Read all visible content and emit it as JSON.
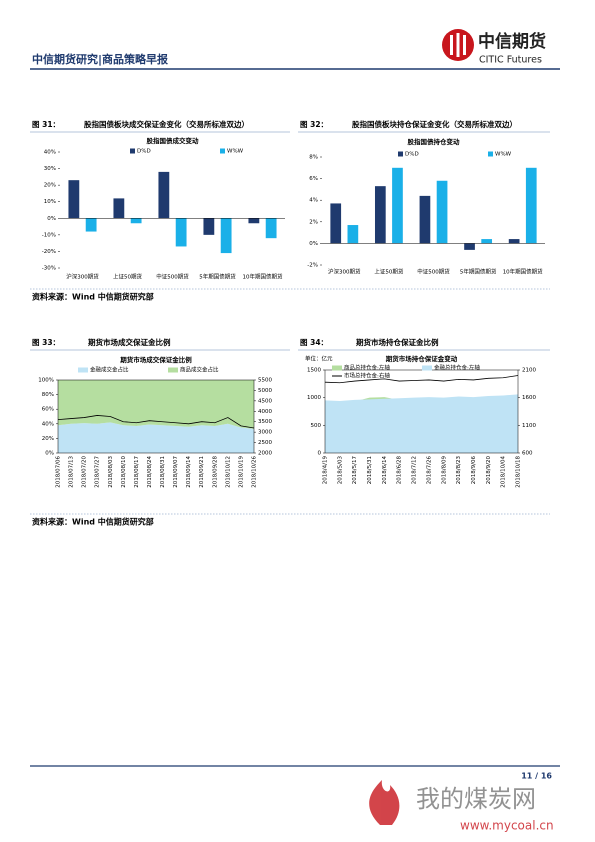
{
  "header": {
    "title": "中信期货研究|商品策略早报",
    "logo_cn": "中信期货",
    "logo_en": "CITIC Futures"
  },
  "figures": [
    {
      "number": "图 31：",
      "caption": "股指国债板块成交保证金变化（交易所标准双边）",
      "chart_data": {
        "type": "bar",
        "title": "股指国债成交变动",
        "categories": [
          "沪深300期货",
          "上证50期货",
          "中证500期货",
          "5年期国债期货",
          "10年期国债期货"
        ],
        "series": [
          {
            "name": "D%D",
            "color": "#1f3a6e",
            "values": [
              23,
              12,
              28,
              -10,
              -3
            ]
          },
          {
            "name": "W%W",
            "color": "#1ab0e8",
            "values": [
              -8,
              -3,
              -17,
              -21,
              -12
            ]
          }
        ],
        "ylim": [
          -30,
          40
        ],
        "yticks": [
          {
            "value": -30,
            "label": "-30%"
          },
          {
            "value": -20,
            "label": "-20%"
          },
          {
            "value": -10,
            "label": "-10%"
          },
          {
            "value": 0,
            "label": "0%"
          },
          {
            "value": 10,
            "label": "10%"
          },
          {
            "value": 20,
            "label": "20%"
          },
          {
            "value": 30,
            "label": "30%"
          },
          {
            "value": 40,
            "label": "40%"
          }
        ]
      }
    },
    {
      "number": "图 32：",
      "caption": "股指国债板块持仓保证金变化（交易所标准双边）",
      "chart_data": {
        "type": "bar",
        "title": "股指国债持仓变动",
        "categories": [
          "沪深300期货",
          "上证50期货",
          "中证500期货",
          "5年期国债期货",
          "10年期国债期货"
        ],
        "series": [
          {
            "name": "D%D",
            "color": "#1f3a6e",
            "values": [
              3.7,
              5.3,
              4.4,
              -0.6,
              0.4
            ]
          },
          {
            "name": "W%W",
            "color": "#1ab0e8",
            "values": [
              1.7,
              7.0,
              5.8,
              0.4,
              7.0
            ]
          }
        ],
        "ylim": [
          -2,
          8
        ],
        "yticks": [
          {
            "value": -2,
            "label": "-2%"
          },
          {
            "value": 0,
            "label": "0%"
          },
          {
            "value": 2,
            "label": "2%"
          },
          {
            "value": 4,
            "label": "4%"
          },
          {
            "value": 6,
            "label": "6%"
          },
          {
            "value": 8,
            "label": "8%"
          }
        ]
      }
    },
    {
      "number": "图 33：",
      "caption": "期货市场成交保证金比例",
      "chart_data": {
        "type": "area",
        "stacked": true,
        "title": "期货市场成交保证金比例",
        "categories": [
          "2018/07/06",
          "2018/07/13",
          "2018/07/20",
          "2018/07/27",
          "2018/08/03",
          "2018/08/10",
          "2018/08/17",
          "2018/08/24",
          "2018/08/31",
          "2018/09/07",
          "2018/09/14",
          "2018/09/21",
          "2018/09/28",
          "2018/10/12",
          "2018/10/19",
          "2018/10/26"
        ],
        "series": [
          {
            "name": "金融成交金占比",
            "color": "#bfe3f5",
            "style": "area",
            "values": [
              38,
              40,
              41,
              40,
              42,
              38,
              37,
              39,
              38,
              37,
              36,
              38,
              37,
              40,
              35,
              33
            ]
          },
          {
            "name": "商品成交金占比",
            "color": "#b5dea0",
            "style": "area",
            "values": [
              62,
              60,
              59,
              60,
              58,
              62,
              63,
              61,
              62,
              63,
              64,
              62,
              63,
              60,
              65,
              67
            ]
          },
          {
            "color": "#000000",
            "style": "line",
            "axis": "y2",
            "values": [
              3600,
              3650,
              3700,
              3800,
              3750,
              3500,
              3450,
              3550,
              3500,
              3450,
              3400,
              3500,
              3450,
              3700,
              3300,
              3200
            ]
          }
        ],
        "ylim": [
          0,
          100
        ],
        "yticks": [
          {
            "value": 0,
            "label": "0%"
          },
          {
            "value": 20,
            "label": "20%"
          },
          {
            "value": 40,
            "label": "40%"
          },
          {
            "value": 60,
            "label": "60%"
          },
          {
            "value": 80,
            "label": "80%"
          },
          {
            "value": 100,
            "label": "100%"
          }
        ],
        "y2lim": [
          2000,
          5500
        ],
        "y2ticks": [
          2000,
          2500,
          3000,
          3500,
          4000,
          4500,
          5000,
          5500
        ]
      }
    },
    {
      "number": "图 34：",
      "caption": "期货市场持仓保证金比例",
      "chart_data": {
        "type": "area",
        "stacked": false,
        "title": "期货市场持仓保证金变动",
        "unit": "单位：亿元",
        "categories": [
          "2018/4/19",
          "2018/5/03",
          "2018/5/17",
          "2018/5/31",
          "2018/6/14",
          "2018/6/28",
          "2018/7/12",
          "2018/7/26",
          "2018/8/09",
          "2018/8/23",
          "2018/9/06",
          "2018/9/20",
          "2018/10/04",
          "2018/10/18"
        ],
        "series": [
          {
            "name": "商品总持仓金:左轴",
            "color": "#b5dea0",
            "style": "area",
            "values": [
              900,
              910,
              930,
              1000,
              1010,
              960,
              960,
              970,
              960,
              980,
              970,
              990,
              1000,
              1020
            ]
          },
          {
            "name": "金融总持仓金:左轴",
            "color": "#bfe3f5",
            "style": "area",
            "values": [
              950,
              940,
              960,
              970,
              980,
              990,
              1000,
              1010,
              1000,
              1020,
              1010,
              1030,
              1040,
              1060
            ]
          },
          {
            "name": "市场总持仓金:右轴",
            "color": "#000000",
            "style": "line",
            "axis": "y2",
            "values": [
              1880,
              1870,
              1900,
              1920,
              1940,
              1900,
              1910,
              1920,
              1900,
              1930,
              1920,
              1950,
              1960,
              2000
            ]
          }
        ],
        "ylim": [
          0,
          1500
        ],
        "yticks": [
          0,
          500,
          1000,
          1500
        ],
        "y2lim": [
          600,
          2100
        ],
        "y2ticks": [
          600,
          1100,
          1600,
          2100
        ]
      }
    }
  ],
  "sources": [
    "资料来源：Wind  中信期货研究部",
    "资料来源：Wind  中信期货研究部"
  ],
  "footer": {
    "page": "11 / 16"
  },
  "watermark": {
    "cn": "我的煤炭网",
    "url": "www.mycoal.cn"
  }
}
